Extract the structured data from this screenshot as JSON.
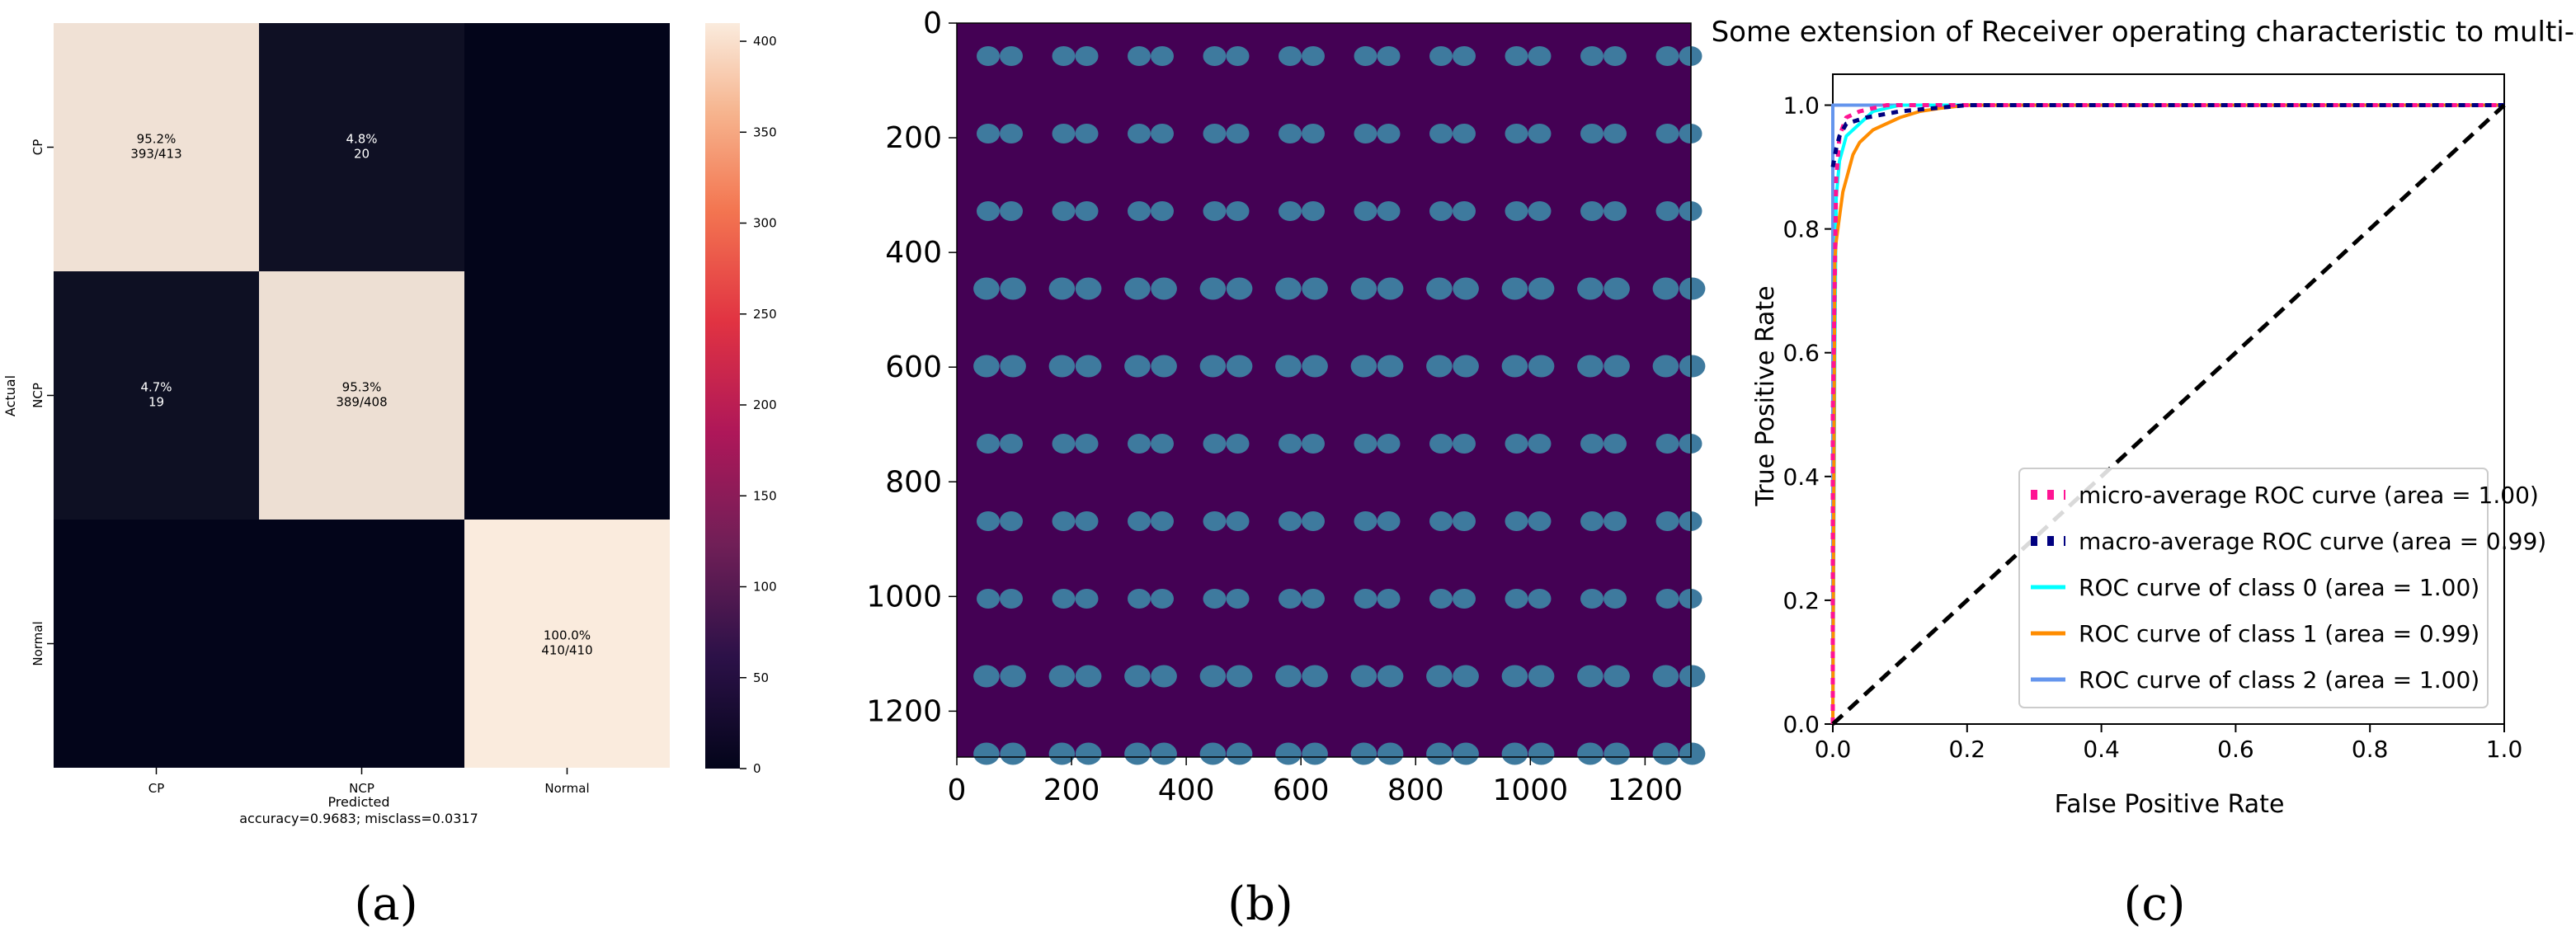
{
  "colors": {
    "heat_low": "#03051A",
    "heat_high": "#FAEBDD",
    "image_bg": "#440154",
    "lung": "#3E7A9E",
    "roc_micro": "#FF1493",
    "roc_macro": "#000080",
    "roc_class0": "#00FFFF",
    "roc_class1": "#FF8C00",
    "roc_class2": "#6495ED",
    "diagonal": "#000000"
  },
  "panels": {
    "a": "(a)",
    "b": "(b)",
    "c": "(c)"
  },
  "chart_data": [
    {
      "type": "heatmap",
      "rows": [
        "CP",
        "NCP",
        "Normal"
      ],
      "columns": [
        "CP",
        "NCP",
        "Normal"
      ],
      "values": [
        [
          393,
          20,
          0
        ],
        [
          19,
          389,
          0
        ],
        [
          0,
          0,
          410
        ]
      ],
      "cell_labels": [
        [
          "95.2%\n393/413",
          "4.8%\n20",
          ""
        ],
        [
          "4.7%\n19",
          "95.3%\n389/408",
          ""
        ],
        [
          "",
          "",
          "100.0%\n410/410"
        ]
      ],
      "ylabel": "Actual",
      "xlabel": "Predicted",
      "subtitle": "accuracy=0.9683; misclass=0.0317",
      "colorbar": {
        "range": [
          0,
          410
        ],
        "ticks": [
          0,
          50,
          100,
          150,
          200,
          250,
          300,
          350,
          400
        ]
      }
    },
    {
      "type": "image",
      "description_free": true,
      "grid": {
        "rows": 10,
        "cols": 10
      },
      "xlim": [
        0,
        1280
      ],
      "ylim": [
        1280,
        0
      ],
      "xticks": [
        0,
        200,
        400,
        600,
        800,
        1000,
        1200
      ],
      "yticks": [
        0,
        200,
        400,
        600,
        800,
        1000,
        1200
      ]
    },
    {
      "type": "line",
      "title": "Some extension of Receiver operating characteristic to multi-class",
      "xlabel": "False Positive Rate",
      "ylabel": "True Positive Rate",
      "xlim": [
        0,
        1
      ],
      "ylim": [
        0,
        1.05
      ],
      "xticks": [
        "0.0",
        "0.2",
        "0.4",
        "0.6",
        "0.8",
        "1.0"
      ],
      "yticks": [
        "0.0",
        "0.2",
        "0.4",
        "0.6",
        "0.8",
        "1.0"
      ],
      "legend_position": "lower-right",
      "series": [
        {
          "name": "micro-average ROC curve (area = 1.00)",
          "style": "dotted",
          "x": [
            0,
            0,
            0.005,
            0.01,
            0.02,
            0.04,
            0.08,
            1
          ],
          "y": [
            0,
            0.5,
            0.88,
            0.95,
            0.98,
            0.99,
            1.0,
            1.0
          ]
        },
        {
          "name": "macro-average ROC curve (area = 0.99)",
          "style": "dotted",
          "x": [
            0,
            0.005,
            0.01,
            0.02,
            0.05,
            0.1,
            0.2,
            1
          ],
          "y": [
            0.9,
            0.93,
            0.95,
            0.97,
            0.98,
            0.99,
            1.0,
            1.0
          ]
        },
        {
          "name": "ROC curve of class 0 (area = 1.00)",
          "style": "solid",
          "x": [
            0,
            0.003,
            0.005,
            0.01,
            0.02,
            0.04,
            0.06,
            0.1,
            1
          ],
          "y": [
            0,
            0.6,
            0.85,
            0.91,
            0.95,
            0.97,
            0.99,
            1.0,
            1.0
          ]
        },
        {
          "name": "ROC curve of class 1 (area = 0.99)",
          "style": "solid",
          "x": [
            0,
            0.003,
            0.005,
            0.01,
            0.015,
            0.02,
            0.03,
            0.04,
            0.06,
            0.08,
            0.1,
            0.13,
            0.16,
            0.2,
            1
          ],
          "y": [
            0,
            0.75,
            0.78,
            0.82,
            0.86,
            0.88,
            0.92,
            0.94,
            0.96,
            0.97,
            0.98,
            0.99,
            0.995,
            1.0,
            1.0
          ]
        },
        {
          "name": "ROC curve of class 2 (area = 1.00)",
          "style": "solid",
          "x": [
            0,
            0,
            1
          ],
          "y": [
            0,
            1.0,
            1.0
          ]
        },
        {
          "style": "dashed",
          "x": [
            0,
            1
          ],
          "y": [
            0,
            1
          ]
        }
      ]
    }
  ]
}
